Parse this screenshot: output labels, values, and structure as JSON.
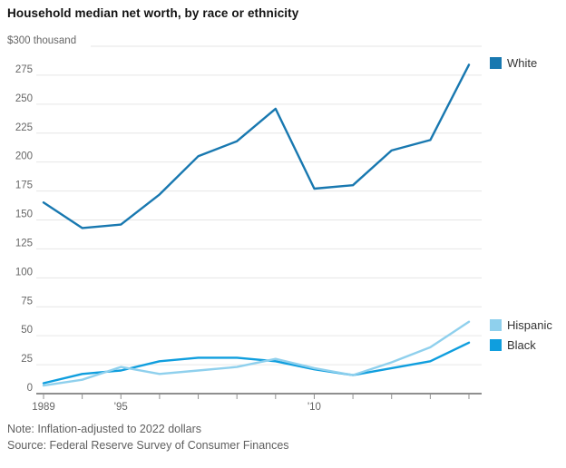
{
  "chart": {
    "title": "Household median net worth, by race or ethnicity",
    "y_axis_top_label": "$300 thousand",
    "note": "Note: Inflation-adjusted to 2022 dollars",
    "source": "Source: Federal Reserve Survey of Consumer Finances"
  },
  "legend": {
    "white_label": "White",
    "hispanic_label": "Hispanic",
    "black_label": "Black"
  },
  "colors": {
    "white": "#1878b0",
    "black": "#0f9ede",
    "hispanic": "#8fd0ed",
    "grid": "#e6e6e6",
    "axis": "#8f8f8f",
    "text_muted": "#666666"
  },
  "chart_data": {
    "type": "line",
    "title": "Household median net worth, by race or ethnicity",
    "xlabel": "",
    "ylabel": "$ thousand",
    "ylim": [
      0,
      300
    ],
    "ytick_interval": 25,
    "grid": "horizontal",
    "legend_position": "right",
    "x": [
      1989,
      1992,
      1995,
      1998,
      2001,
      2004,
      2007,
      2010,
      2013,
      2016,
      2019,
      2022
    ],
    "xtick_labels": [
      {
        "year": 1989,
        "label": "1989"
      },
      {
        "year": 1995,
        "label": "'95"
      },
      {
        "year": 2010,
        "label": "'10"
      }
    ],
    "series": [
      {
        "name": "White",
        "color_key": "white",
        "values": [
          165,
          143,
          146,
          172,
          205,
          218,
          246,
          177,
          180,
          210,
          219,
          284
        ]
      },
      {
        "name": "Black",
        "color_key": "black",
        "values": [
          9,
          17,
          20,
          28,
          31,
          31,
          28,
          21,
          16,
          22,
          28,
          44
        ]
      },
      {
        "name": "Hispanic",
        "color_key": "hispanic",
        "values": [
          7,
          12,
          23,
          17,
          20,
          23,
          30,
          22,
          16,
          27,
          40,
          62
        ]
      }
    ]
  }
}
